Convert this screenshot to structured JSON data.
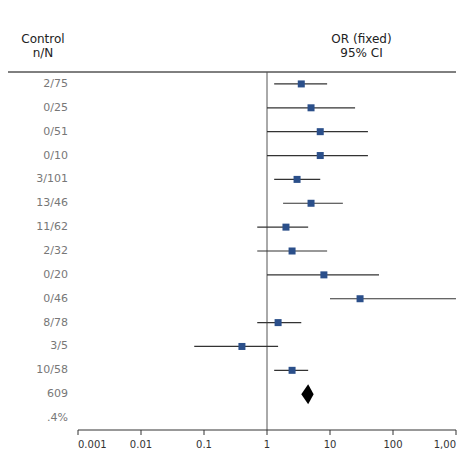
{
  "chart_data": {
    "type": "forest",
    "header_left": "Control\nn/N",
    "header_right": "OR (fixed)\n95% CI",
    "categories": [
      "2/75",
      "0/25",
      "0/51",
      "0/10",
      "3/101",
      "13/46",
      "11/62",
      "2/32",
      "0/20",
      "0/46",
      "8/78",
      "3/5",
      "10/58"
    ],
    "values": [
      3.5,
      5.0,
      7.0,
      7.0,
      3.0,
      5.0,
      2.0,
      2.5,
      8.0,
      30.0,
      1.5,
      0.4,
      2.5
    ],
    "ci_lower": [
      1.3,
      1.0,
      1.0,
      1.0,
      1.3,
      1.8,
      0.7,
      0.7,
      1.0,
      10.0,
      0.7,
      0.07,
      1.3
    ],
    "ci_upper": [
      9.0,
      25.0,
      40.0,
      40.0,
      7.0,
      16.0,
      4.5,
      9.0,
      60.0,
      999.0,
      3.5,
      1.5,
      4.5
    ],
    "summary": {
      "value": 4.5,
      "lower": 3.5,
      "upper": 5.5
    },
    "summary_label": "609",
    "bottom_label": ".4%",
    "reference_line": 1.0,
    "color": "#2b4f8a",
    "log": "x",
    "grid": false,
    "xlim": [
      0.001,
      1000
    ],
    "xticks": [
      0.001,
      0.01,
      0.1,
      1,
      10,
      100,
      {
        "value": 1000,
        "label": "1,00"
      }
    ]
  }
}
